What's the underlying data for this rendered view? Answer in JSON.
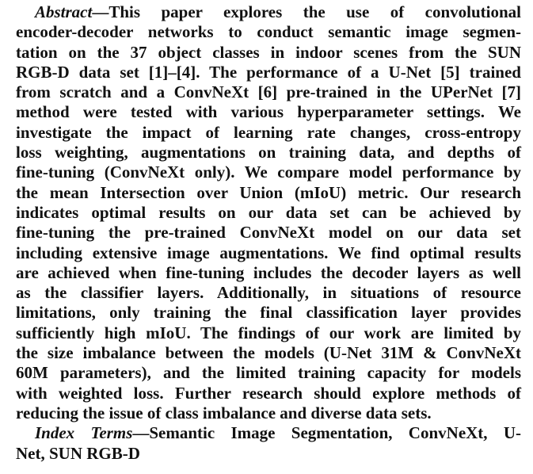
{
  "abstract": {
    "heading": "Abstract",
    "lines": [
      "—This paper explores the use of convolutional",
      "encoder-decoder networks to conduct semantic image segmen-",
      "tation on the 37 object classes in indoor scenes from the SUN",
      "RGB-D data set [1]–[4]. The performance of a U-Net [5] trained",
      "from scratch and a ConvNeXt [6] pre-trained in the UPerNet [7]",
      "method were tested with various hyperparameter settings. We",
      "investigate the impact of learning rate changes, cross-entropy",
      "loss weighting, augmentations on training data, and depths of",
      "fine-tuning (ConvNeXt only). We compare model performance by",
      "the mean Intersection over Union (mIoU) metric. Our research",
      "indicates optimal results on our data set can be achieved by",
      "fine-tuning the pre-trained ConvNeXt model on our data set",
      "including extensive image augmentations. We find optimal results",
      "are achieved when fine-tuning includes the decoder layers as well",
      "as the classifier layers. Additionally, in situations of resource",
      "limitations, only training the final classification layer provides",
      "sufficiently high mIoU. The findings of our work are limited by",
      "the size imbalance between the models (U-Net 31M & ConvNeXt",
      "60M parameters), and the limited training capacity for models",
      "with weighted loss. Further research should explore methods of",
      "reducing the issue of class imbalance and diverse data sets."
    ]
  },
  "index_terms": {
    "heading": "Index Terms",
    "lines": [
      "—Semantic Image Segmentation, ConvNeXt, U-",
      "Net, SUN RGB-D"
    ]
  }
}
